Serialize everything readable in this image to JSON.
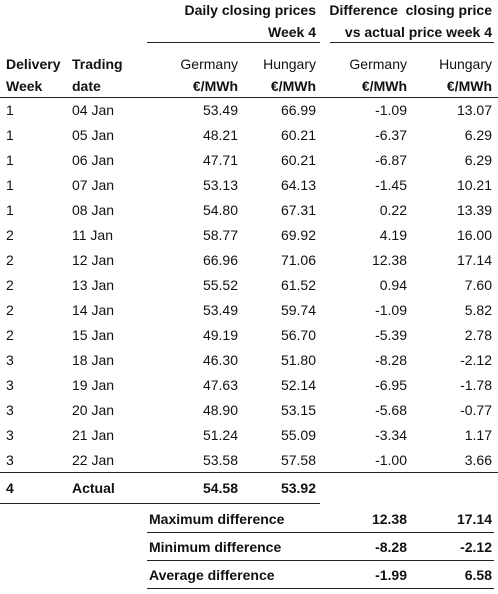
{
  "header_groups": [
    {
      "lines": [
        "Daily closing prices",
        "Week 4"
      ]
    },
    {
      "lines": [
        "Difference  closing price",
        "vs actual price week 4"
      ]
    }
  ],
  "columns": [
    {
      "lines": [
        "Delivery",
        "Week"
      ]
    },
    {
      "lines": [
        "Trading",
        "date"
      ]
    },
    {
      "lines": [
        "Germany",
        "€/MWh"
      ]
    },
    {
      "lines": [
        "Hungary",
        "€/MWh"
      ]
    },
    {
      "lines": [
        "Germany",
        "€/MWh"
      ]
    },
    {
      "lines": [
        "Hungary",
        "€/MWh"
      ]
    }
  ],
  "rows": [
    [
      "1",
      "04 Jan",
      "53.49",
      "66.99",
      "-1.09",
      "13.07"
    ],
    [
      "1",
      "05 Jan",
      "48.21",
      "60.21",
      "-6.37",
      "6.29"
    ],
    [
      "1",
      "06 Jan",
      "47.71",
      "60.21",
      "-6.87",
      "6.29"
    ],
    [
      "1",
      "07 Jan",
      "53.13",
      "64.13",
      "-1.45",
      "10.21"
    ],
    [
      "1",
      "08 Jan",
      "54.80",
      "67.31",
      "0.22",
      "13.39"
    ],
    [
      "2",
      "11 Jan",
      "58.77",
      "69.92",
      "4.19",
      "16.00"
    ],
    [
      "2",
      "12 Jan",
      "66.96",
      "71.06",
      "12.38",
      "17.14"
    ],
    [
      "2",
      "13 Jan",
      "55.52",
      "61.52",
      "0.94",
      "7.60"
    ],
    [
      "2",
      "14 Jan",
      "53.49",
      "59.74",
      "-1.09",
      "5.82"
    ],
    [
      "2",
      "15 Jan",
      "49.19",
      "56.70",
      "-5.39",
      "2.78"
    ],
    [
      "3",
      "18 Jan",
      "46.30",
      "51.80",
      "-8.28",
      "-2.12"
    ],
    [
      "3",
      "19 Jan",
      "47.63",
      "52.14",
      "-6.95",
      "-1.78"
    ],
    [
      "3",
      "20 Jan",
      "48.90",
      "53.15",
      "-5.68",
      "-0.77"
    ],
    [
      "3",
      "21 Jan",
      "51.24",
      "55.09",
      "-3.34",
      "1.17"
    ],
    [
      "3",
      "22 Jan",
      "53.58",
      "57.58",
      "-1.00",
      "3.66"
    ]
  ],
  "actual": [
    "4",
    "Actual",
    "54.58",
    "53.92"
  ],
  "summary": [
    {
      "label": "Maximum difference",
      "values": [
        "12.38",
        "17.14"
      ]
    },
    {
      "label": "Minimum difference",
      "values": [
        "-8.28",
        "-2.12"
      ]
    },
    {
      "label": "Average difference",
      "values": [
        "-1.99",
        "6.58"
      ]
    }
  ]
}
